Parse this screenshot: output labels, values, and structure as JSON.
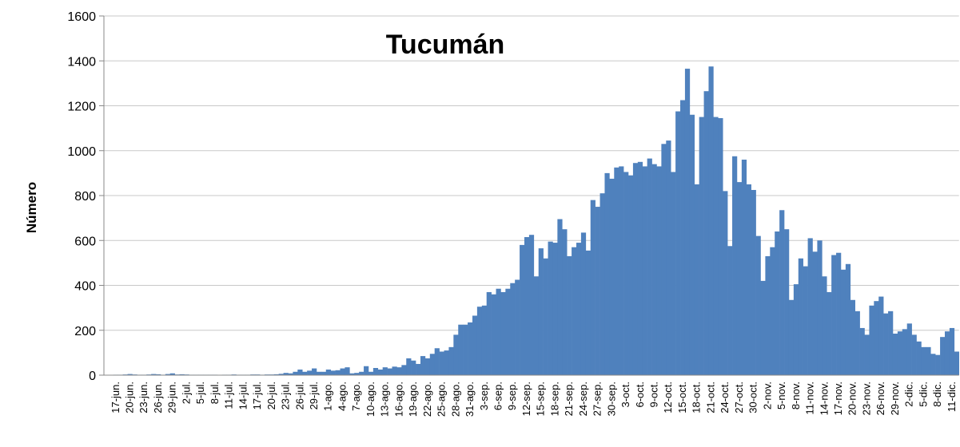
{
  "chart_data": {
    "type": "bar",
    "title": "Tucumán",
    "y_label": "Número",
    "categories": [
      null,
      null,
      "17-jun.",
      null,
      null,
      "20-jun.",
      null,
      null,
      "23-jun.",
      null,
      null,
      "26-jun.",
      null,
      null,
      "29-jun.",
      null,
      null,
      "2-jul.",
      null,
      null,
      "5-jul.",
      null,
      null,
      "8-jul.",
      null,
      null,
      "11-jul.",
      null,
      null,
      "14-jul.",
      null,
      null,
      "17-jul.",
      null,
      null,
      "20-jul.",
      null,
      null,
      "23-jul.",
      null,
      null,
      "26-jul.",
      null,
      null,
      "29-jul.",
      null,
      null,
      "1-ago.",
      null,
      null,
      "4-ago.",
      null,
      null,
      "7-ago.",
      null,
      null,
      "10-ago.",
      null,
      null,
      "13-ago.",
      null,
      null,
      "16-ago.",
      null,
      null,
      "19-ago.",
      null,
      null,
      "22-ago.",
      null,
      null,
      "25-ago.",
      null,
      null,
      "28-ago.",
      null,
      null,
      "31-ago.",
      null,
      null,
      "3-sep.",
      null,
      null,
      "6-sep.",
      null,
      null,
      "9-sep.",
      null,
      null,
      "12-sep.",
      null,
      null,
      "15-sep.",
      null,
      null,
      "18-sep.",
      null,
      null,
      "21-sep.",
      null,
      null,
      "24-sep.",
      null,
      null,
      "27-sep.",
      null,
      null,
      "30-sep.",
      null,
      null,
      "3-oct.",
      null,
      null,
      "6-oct.",
      null,
      null,
      "9-oct.",
      null,
      null,
      "12-oct.",
      null,
      null,
      "15-oct.",
      null,
      null,
      "18-oct.",
      null,
      null,
      "21-oct.",
      null,
      null,
      "24-oct.",
      null,
      null,
      "27-oct.",
      null,
      null,
      "30-oct.",
      null,
      null,
      "2-nov.",
      null,
      null,
      "5-nov.",
      null,
      null,
      "8-nov.",
      null,
      null,
      "11-nov.",
      null,
      null,
      "14-nov.",
      null,
      null,
      "17-nov.",
      null,
      null,
      "20-nov.",
      null,
      null,
      "23-nov.",
      null,
      null,
      "26-nov.",
      null,
      null,
      "29-nov.",
      null,
      null,
      "2-dic.",
      null,
      null,
      "5-dic.",
      null,
      null,
      "8-dic.",
      null,
      null,
      "11-dic.",
      null
    ],
    "values": [
      0,
      0,
      2,
      2,
      3,
      5,
      3,
      2,
      2,
      3,
      5,
      4,
      2,
      5,
      8,
      3,
      4,
      3,
      2,
      2,
      2,
      2,
      2,
      2,
      1,
      2,
      2,
      3,
      2,
      2,
      2,
      3,
      3,
      2,
      3,
      3,
      4,
      6,
      10,
      8,
      15,
      25,
      15,
      20,
      30,
      15,
      15,
      25,
      20,
      22,
      30,
      35,
      8,
      10,
      15,
      40,
      15,
      32,
      25,
      35,
      30,
      38,
      35,
      45,
      75,
      65,
      50,
      85,
      75,
      95,
      120,
      105,
      110,
      125,
      180,
      225,
      225,
      235,
      265,
      305,
      310,
      370,
      360,
      385,
      370,
      385,
      410,
      425,
      580,
      615,
      625,
      440,
      565,
      520,
      595,
      590,
      695,
      650,
      530,
      570,
      590,
      635,
      555,
      780,
      750,
      810,
      900,
      875,
      925,
      930,
      905,
      890,
      945,
      950,
      930,
      965,
      940,
      930,
      1030,
      1045,
      905,
      1175,
      1225,
      1365,
      1160,
      850,
      1150,
      1265,
      1375,
      1150,
      1145,
      820,
      575,
      975,
      860,
      960,
      850,
      825,
      620,
      420,
      530,
      570,
      640,
      735,
      650,
      335,
      405,
      520,
      485,
      610,
      550,
      600,
      440,
      370,
      535,
      545,
      470,
      495,
      335,
      285,
      210,
      180,
      310,
      330,
      350,
      275,
      285,
      185,
      195,
      205,
      230,
      180,
      150,
      125,
      125,
      95,
      90,
      170,
      195,
      210,
      105
    ],
    "color": "#4f81bd",
    "ylim": [
      0,
      1600
    ],
    "yticks": [
      0,
      200,
      400,
      600,
      800,
      1000,
      1200,
      1400,
      1600
    ],
    "grid": true
  }
}
